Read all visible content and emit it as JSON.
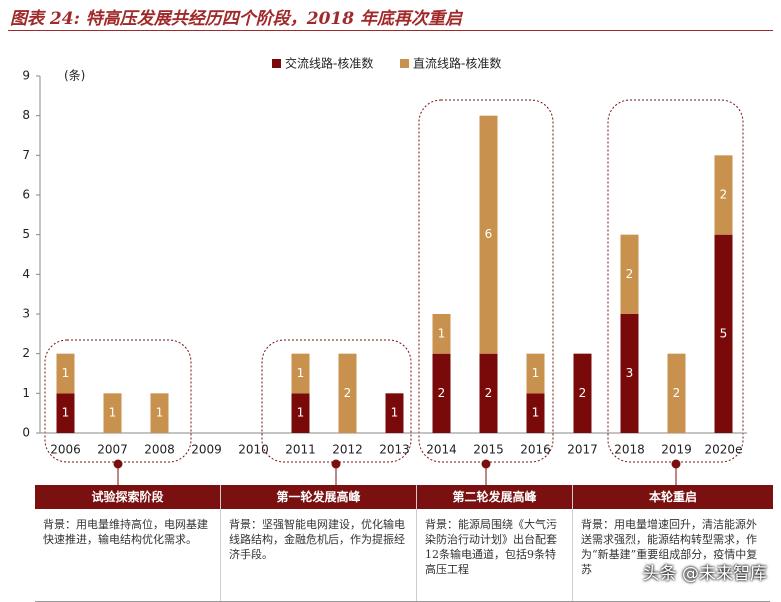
{
  "title": "图表 24: 特高压发展共经历四个阶段，2018 年底再次重启",
  "chart_data": {
    "type": "bar",
    "stacked": true,
    "y_unit_label": "(条)",
    "categories": [
      "2006",
      "2007",
      "2008",
      "2009",
      "2010",
      "2011",
      "2012",
      "2013",
      "2014",
      "2015",
      "2016",
      "2017",
      "2018",
      "2019",
      "2020e"
    ],
    "series": [
      {
        "name": "交流线路-核准数",
        "color": "#7a0a0a",
        "values": [
          1,
          0,
          0,
          0,
          0,
          1,
          0,
          1,
          2,
          2,
          1,
          2,
          3,
          0,
          5
        ]
      },
      {
        "name": "直流线路-核准数",
        "color": "#c8924e",
        "values": [
          1,
          1,
          1,
          0,
          0,
          1,
          2,
          0,
          1,
          6,
          1,
          0,
          2,
          2,
          2
        ]
      }
    ],
    "ylim": [
      0,
      9
    ],
    "yticks": [
      0,
      1,
      2,
      3,
      4,
      5,
      6,
      7,
      8,
      9
    ],
    "legend": "top"
  },
  "phases": [
    {
      "title": "试验探索阶段",
      "text": "背景：用电量维持高位，电网基建快速推进，输电结构优化需求。"
    },
    {
      "title": "第一轮发展高峰",
      "text": "背景：坚强智能电网建设，优化输电线路结构，金融危机后，作为提振经济手段。"
    },
    {
      "title": "第二轮发展高峰",
      "text": "背景：能源局围绕《大气污染防治行动计划》出台配套12条输电通道，包括9条特高压工程"
    },
    {
      "title": "本轮重启",
      "text": "背景：用电量增速回升，清洁能源外送需求强烈，能源结构转型需求，作为“新基建”重要组成部分，疫情中复苏"
    }
  ],
  "watermark": "头条 @未来智库"
}
